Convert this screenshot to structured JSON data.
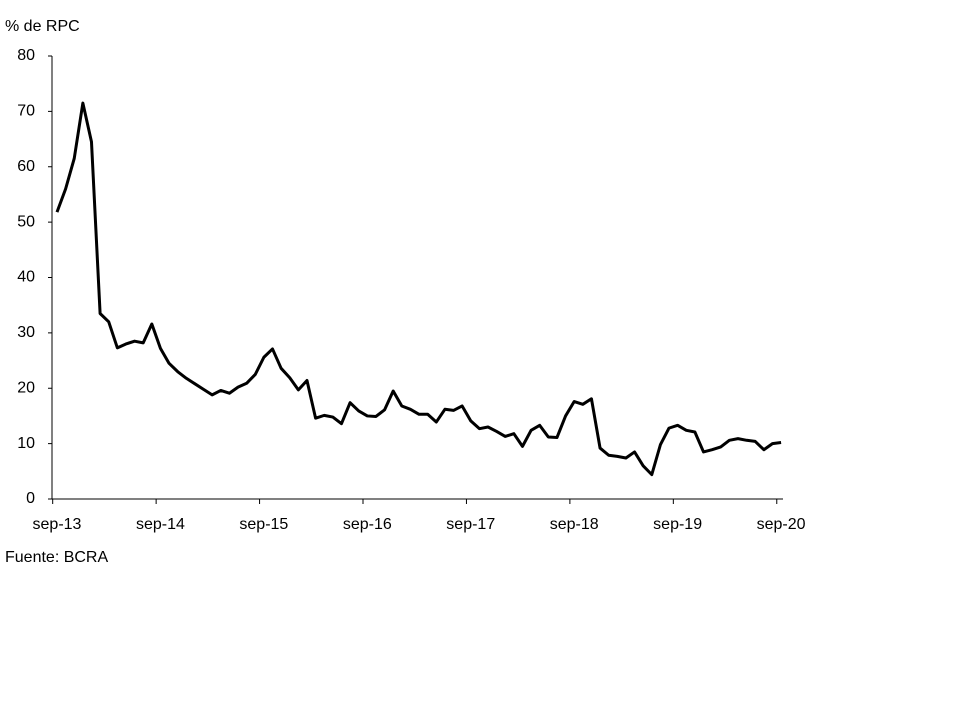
{
  "chart_data": {
    "type": "line",
    "y_axis_label": "% de RPC",
    "source": "Fuente: BCRA",
    "categories": [
      "sep-13",
      null,
      null,
      null,
      null,
      null,
      null,
      null,
      null,
      null,
      null,
      null,
      "sep-14",
      null,
      null,
      null,
      null,
      null,
      null,
      null,
      null,
      null,
      null,
      null,
      "sep-15",
      null,
      null,
      null,
      null,
      null,
      null,
      null,
      null,
      null,
      null,
      null,
      "sep-16",
      null,
      null,
      null,
      null,
      null,
      null,
      null,
      null,
      null,
      null,
      null,
      "sep-17",
      null,
      null,
      null,
      null,
      null,
      null,
      null,
      null,
      null,
      null,
      null,
      "sep-18",
      null,
      null,
      null,
      null,
      null,
      null,
      null,
      null,
      null,
      null,
      null,
      "sep-19",
      null,
      null,
      null,
      null,
      null,
      null,
      null,
      null,
      null,
      null,
      null,
      "sep-20"
    ],
    "series": [
      {
        "color": "#000000",
        "values": [
          51.8,
          56,
          61.5,
          71.5,
          64.5,
          33.5,
          32,
          27.3,
          28,
          28.5,
          28.2,
          31.6,
          27.2,
          24.5,
          23,
          21.8,
          20.8,
          19.8,
          18.8,
          19.6,
          19.1,
          20.2,
          20.9,
          22.5,
          25.6,
          27.1,
          23.6,
          21.9,
          19.7,
          21.4,
          14.6,
          15.1,
          14.8,
          13.6,
          17.4,
          15.9,
          15,
          14.9,
          16.1,
          19.5,
          16.8,
          16.2,
          15.3,
          15.3,
          13.9,
          16.2,
          16,
          16.8,
          14.1,
          12.7,
          13,
          12.2,
          11.3,
          11.8,
          9.5,
          12.4,
          13.3,
          11.2,
          11.1,
          15,
          17.6,
          17.1,
          18.1,
          9.2,
          7.9,
          7.7,
          7.4,
          8.5,
          6,
          4.4,
          9.8,
          12.8,
          13.3,
          12.4,
          12.1,
          8.5,
          8.9,
          9.4,
          10.6,
          10.9,
          10.6,
          10.4,
          8.9,
          10,
          10.2
        ]
      }
    ],
    "ylim": [
      0,
      80
    ],
    "yticks": [
      0,
      10,
      20,
      30,
      40,
      50,
      60,
      70,
      80
    ]
  }
}
